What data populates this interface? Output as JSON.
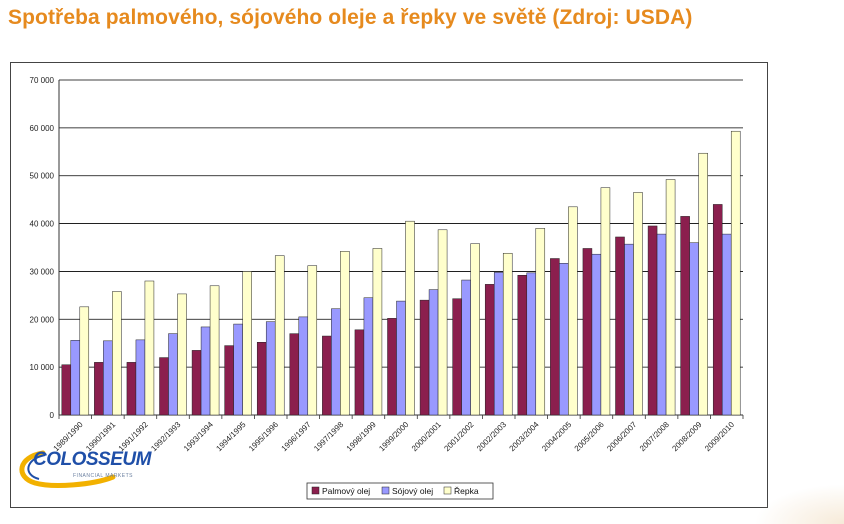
{
  "title": "Spotřeba palmového, sójového oleje a řepky ve světě (Zdroj: USDA)",
  "logo": {
    "name": "COLOSSEUM",
    "tagline": "FINANCIAL MARKETS"
  },
  "colors": {
    "title": "#E68A1E",
    "palm": "#8B1F4E",
    "soy": "#9999FF",
    "rapeseed": "#FFFFCC"
  },
  "chart_data": {
    "type": "bar",
    "title": "",
    "xlabel": "",
    "ylabel": "",
    "ylim": [
      0,
      70000
    ],
    "yticks": [
      0,
      10000,
      20000,
      30000,
      40000,
      50000,
      60000,
      70000
    ],
    "ytick_labels": [
      "0",
      "10 000",
      "20 000",
      "30 000",
      "40 000",
      "50 000",
      "60 000",
      "70 000"
    ],
    "grid": "horizontal",
    "legend_position": "bottom",
    "categories": [
      "1989/1990",
      "1990/1991",
      "1991/1992",
      "1992/1993",
      "1993/1994",
      "1994/1995",
      "1995/1996",
      "1996/1997",
      "1997/1998",
      "1998/1999",
      "1999/2000",
      "2000/2001",
      "2001/2002",
      "2002/2003",
      "2003/2004",
      "2004/2005",
      "2005/2006",
      "2006/2007",
      "2007/2008",
      "2008/2009",
      "2009/2010"
    ],
    "series": [
      {
        "name": "Palmový olej",
        "color": "#8B1F4E",
        "values": [
          10500,
          11000,
          11000,
          12000,
          13500,
          14500,
          15200,
          17000,
          16500,
          17800,
          20200,
          24000,
          24300,
          27300,
          29200,
          32700,
          34800,
          37200,
          39500,
          41500,
          44000
        ]
      },
      {
        "name": "Sójový olej",
        "color": "#9999FF",
        "values": [
          15600,
          15500,
          15700,
          17000,
          18400,
          19000,
          19500,
          20500,
          22200,
          24500,
          23800,
          26200,
          28200,
          29800,
          29700,
          31700,
          33600,
          35700,
          37800,
          36000,
          37800
        ]
      },
      {
        "name": "Řepka",
        "color": "#FFFFCC",
        "values": [
          22600,
          25800,
          28000,
          25300,
          27000,
          30000,
          33300,
          31200,
          34200,
          34800,
          40500,
          38700,
          35800,
          33800,
          39000,
          43500,
          47500,
          46500,
          49200,
          54700,
          59300
        ]
      }
    ]
  }
}
